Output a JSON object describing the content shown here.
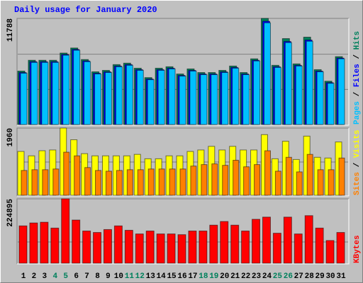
{
  "chart_data": [
    {
      "type": "bar",
      "title": "Daily usage for January 2020",
      "title_color": "#0000ff",
      "ylim": [
        0,
        11788
      ],
      "yticks": [
        11788
      ],
      "legend_separator": " / ",
      "series": [
        {
          "name": "Hits",
          "color": "#00805c",
          "values": [
            5935,
            7138,
            7138,
            7138,
            7940,
            8501,
            7218,
            5855,
            6015,
            6657,
            6817,
            6256,
            5213,
            6256,
            6416,
            5614,
            6175,
            5774,
            5774,
            6015,
            6496,
            5774,
            7298,
            11788,
            6576,
            9544,
            6737,
            9704,
            6095,
            4812,
            7539
          ]
        },
        {
          "name": "Files",
          "color": "#0000ff",
          "values": [
            5775,
            6980,
            6980,
            6980,
            7780,
            8340,
            7060,
            5695,
            5855,
            6497,
            6657,
            6096,
            5053,
            6096,
            6256,
            5454,
            6015,
            5614,
            5614,
            5855,
            6336,
            5614,
            7138,
            11470,
            6416,
            9225,
            6577,
            9385,
            5935,
            4652,
            7380
          ]
        },
        {
          "name": "Pages",
          "color": "#00c0ff",
          "values": [
            5700,
            6900,
            6900,
            6900,
            7700,
            8250,
            6980,
            5620,
            5780,
            6420,
            6580,
            6020,
            4980,
            6020,
            6180,
            5380,
            5940,
            5540,
            5540,
            5780,
            6260,
            5540,
            7060,
            11300,
            6340,
            9100,
            6500,
            9250,
            5860,
            4580,
            7300
          ]
        }
      ]
    },
    {
      "type": "bar",
      "ylim": [
        0,
        1960
      ],
      "yticks": [
        1960
      ],
      "legend_separator": " / ",
      "series": [
        {
          "name": "Visits",
          "color": "#ffff00",
          "values": [
            1278,
            1150,
            1299,
            1321,
            1960,
            1619,
            1214,
            1150,
            1150,
            1150,
            1150,
            1193,
            1065,
            1065,
            1150,
            1150,
            1278,
            1321,
            1427,
            1321,
            1427,
            1321,
            1321,
            1768,
            1065,
            1576,
            1044,
            1725,
            1108,
            1086,
            1555
          ]
        },
        {
          "name": "Sites",
          "color": "#ff8000",
          "values": [
            724,
            746,
            746,
            767,
            1257,
            1150,
            809,
            724,
            703,
            724,
            746,
            746,
            767,
            767,
            767,
            767,
            852,
            895,
            916,
            873,
            1022,
            831,
            895,
            1299,
            703,
            1108,
            682,
            1193,
            746,
            746,
            1086
          ]
        }
      ]
    },
    {
      "type": "bar",
      "ylim": [
        0,
        224895
      ],
      "yticks": [
        224895
      ],
      "categories": [
        "1",
        "2",
        "3",
        "4",
        "5",
        "6",
        "7",
        "8",
        "9",
        "10",
        "11",
        "12",
        "13",
        "14",
        "15",
        "16",
        "17",
        "18",
        "19",
        "20",
        "21",
        "22",
        "23",
        "24",
        "25",
        "26",
        "27",
        "28",
        "29",
        "30",
        "31"
      ],
      "label_colors": [
        "#000000",
        "#000000",
        "#000000",
        "#00805c",
        "#00805c",
        "#000000",
        "#000000",
        "#000000",
        "#000000",
        "#000000",
        "#00805c",
        "#00805c",
        "#000000",
        "#000000",
        "#000000",
        "#000000",
        "#000000",
        "#00805c",
        "#00805c",
        "#000000",
        "#000000",
        "#000000",
        "#000000",
        "#000000",
        "#00805c",
        "#00805c",
        "#000000",
        "#000000",
        "#000000",
        "#000000",
        "#000000"
      ],
      "series": [
        {
          "name": "KBytes",
          "color": "#ff0000",
          "values": [
            130356,
            140580,
            143136,
            122688,
            224895,
            150804,
            112464,
            107352,
            117576,
            130356,
            115020,
            102240,
            112464,
            102240,
            102240,
            99684,
            112464,
            112464,
            132912,
            145692,
            132912,
            112464,
            153360,
            161028,
            104796,
            161028,
            102240,
            166140,
            122688,
            79236,
            107352
          ]
        }
      ]
    }
  ]
}
